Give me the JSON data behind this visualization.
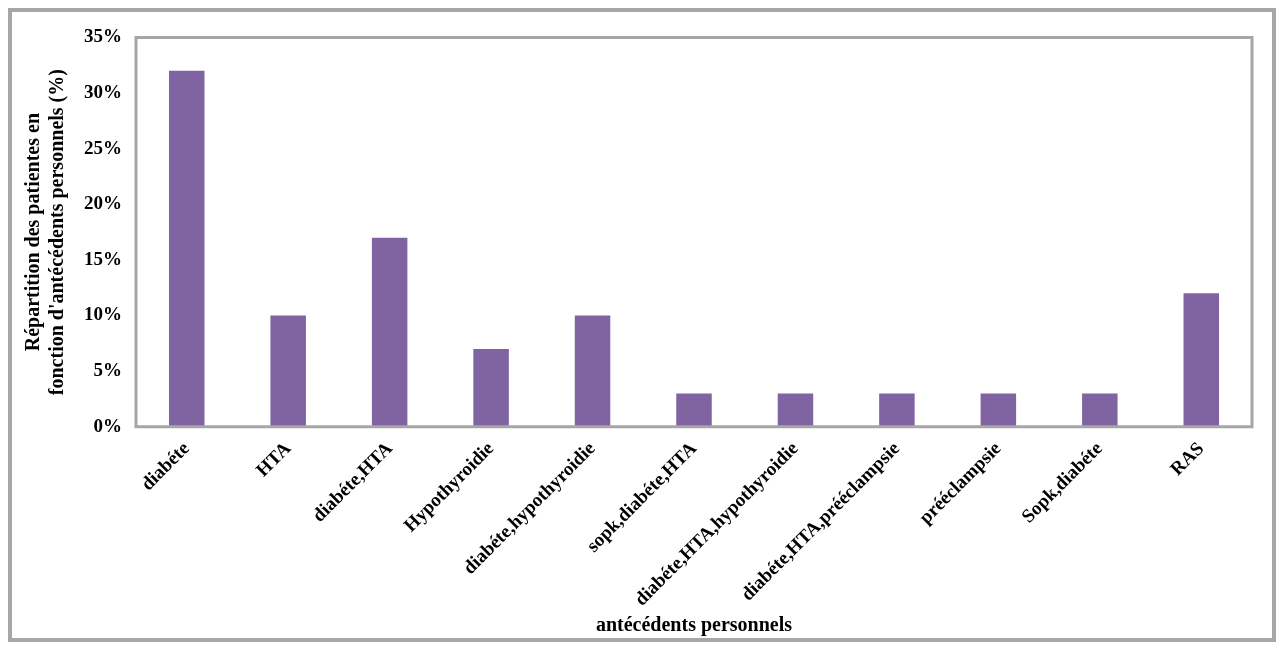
{
  "chart_data": {
    "type": "bar",
    "xlabel": "antécédents personnels",
    "ylabel": "Répartition des patientes en fonction d'antécédents personnels (%)",
    "categories": [
      "diabéte",
      "HTA",
      "diabéte,HTA",
      "Hypothyroidie",
      "diabéte,hypothyroidie",
      "sopk,diabéte,HTA",
      "diabéte,HTA,hypothyroidie",
      "diabéte,HTA,prééclampsie",
      "prééclampsie",
      "Sopk,diabéte",
      "RAS"
    ],
    "values": [
      32,
      10,
      17,
      7,
      10,
      3,
      3,
      3,
      3,
      3,
      12
    ],
    "color": "#8064a2",
    "ylim": [
      0,
      35
    ],
    "yticks": [
      {
        "value": 0,
        "label": "0%"
      },
      {
        "value": 5,
        "label": "5%"
      },
      {
        "value": 10,
        "label": "10%"
      },
      {
        "value": 15,
        "label": "15%"
      },
      {
        "value": 20,
        "label": "20%"
      },
      {
        "value": 25,
        "label": "25%"
      },
      {
        "value": 30,
        "label": "30%"
      },
      {
        "value": 35,
        "label": "35%"
      }
    ],
    "grid": false,
    "legend": false
  }
}
